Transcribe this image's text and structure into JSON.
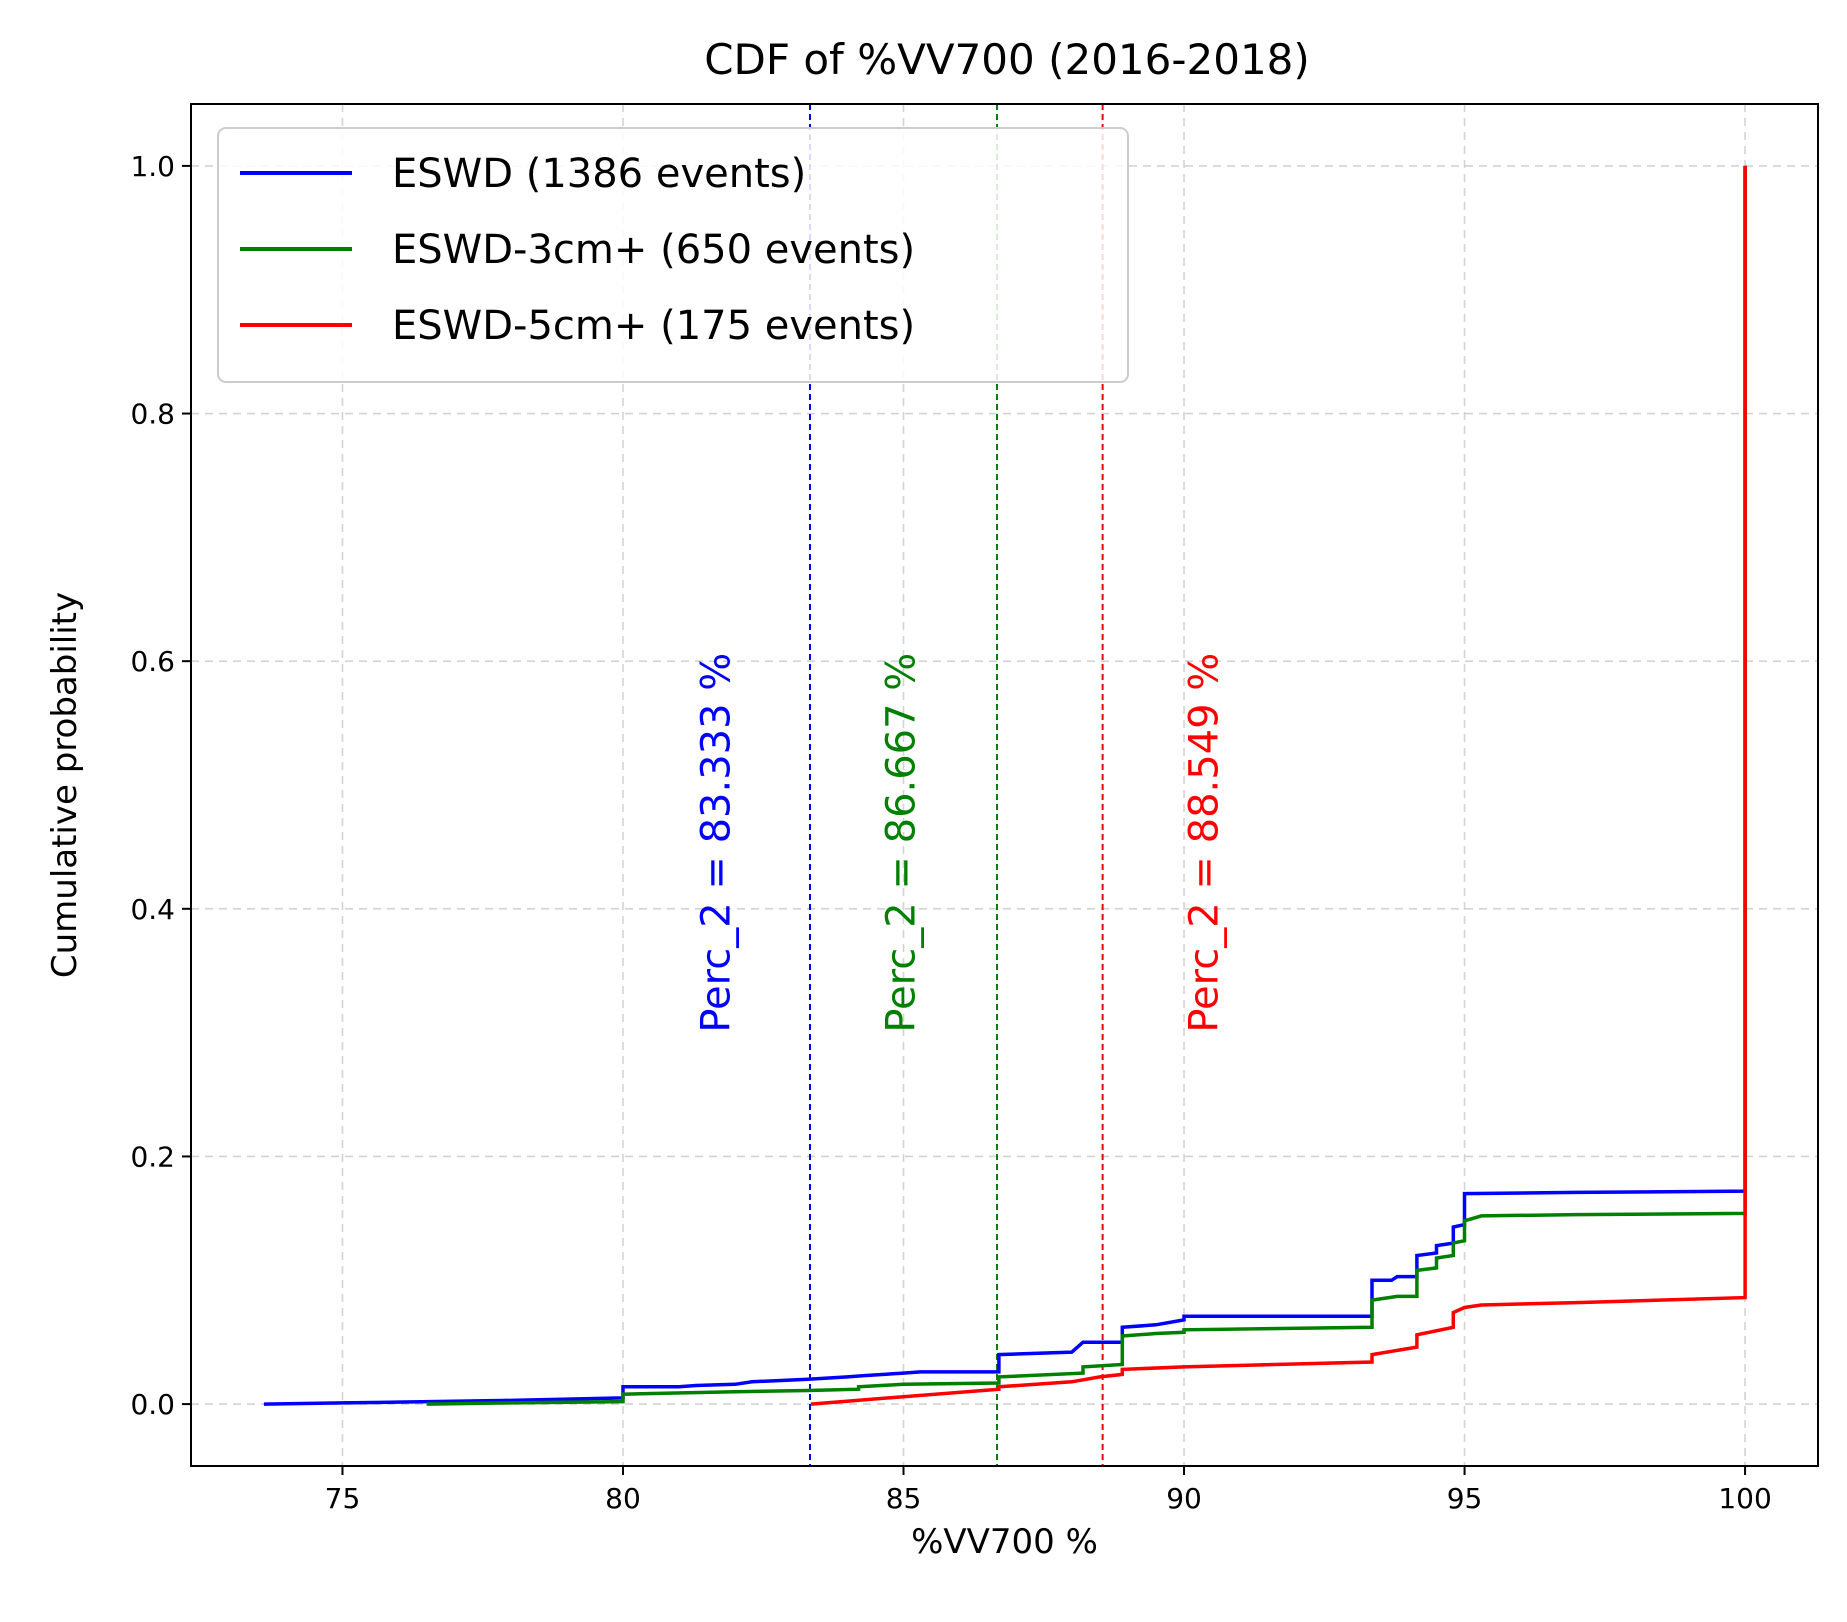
{
  "chart_data": {
    "type": "line",
    "title": "CDF of %VV700 (2016-2018)",
    "xlabel": "%VV700 %",
    "ylabel": "Cumulative probability",
    "xlim": [
      72.3,
      101.3
    ],
    "ylim": [
      -0.05,
      1.05
    ],
    "xticks": [
      75,
      80,
      85,
      90,
      95,
      100
    ],
    "yticks": [
      0.0,
      0.2,
      0.4,
      0.6,
      0.8,
      1.0
    ],
    "xtick_labels": [
      "75",
      "80",
      "85",
      "90",
      "95",
      "100"
    ],
    "ytick_labels": [
      "0.0",
      "0.2",
      "0.4",
      "0.6",
      "0.8",
      "1.0"
    ],
    "grid": true,
    "legend_position": "top-left",
    "series": [
      {
        "name": "ESWD (1386 events)",
        "color": "#0000ff",
        "points": [
          [
            73.6,
            0.0
          ],
          [
            75.0,
            0.001
          ],
          [
            78.0,
            0.003
          ],
          [
            80.0,
            0.005
          ],
          [
            80.0,
            0.014
          ],
          [
            81.0,
            0.014
          ],
          [
            81.3,
            0.015
          ],
          [
            82.0,
            0.016
          ],
          [
            82.3,
            0.018
          ],
          [
            83.3,
            0.02
          ],
          [
            84.0,
            0.022
          ],
          [
            84.3,
            0.023
          ],
          [
            85.0,
            0.025
          ],
          [
            85.3,
            0.026
          ],
          [
            86.7,
            0.026
          ],
          [
            86.7,
            0.04
          ],
          [
            88.0,
            0.042
          ],
          [
            88.2,
            0.05
          ],
          [
            88.9,
            0.05
          ],
          [
            88.9,
            0.062
          ],
          [
            89.5,
            0.064
          ],
          [
            90.0,
            0.068
          ],
          [
            90.0,
            0.071
          ],
          [
            92.0,
            0.071
          ],
          [
            93.35,
            0.071
          ],
          [
            93.35,
            0.1
          ],
          [
            93.7,
            0.1
          ],
          [
            93.8,
            0.103
          ],
          [
            94.15,
            0.103
          ],
          [
            94.15,
            0.12
          ],
          [
            94.5,
            0.122
          ],
          [
            94.5,
            0.128
          ],
          [
            94.8,
            0.13
          ],
          [
            94.8,
            0.143
          ],
          [
            95.0,
            0.145
          ],
          [
            95.0,
            0.17
          ],
          [
            97.0,
            0.171
          ],
          [
            100.0,
            0.172
          ],
          [
            100.0,
            1.0
          ]
        ]
      },
      {
        "name": "ESWD-3cm+ (650 events)",
        "color": "#008000",
        "points": [
          [
            76.5,
            0.0
          ],
          [
            78.0,
            0.001
          ],
          [
            80.0,
            0.002
          ],
          [
            80.0,
            0.008
          ],
          [
            82.0,
            0.01
          ],
          [
            83.3,
            0.011
          ],
          [
            84.2,
            0.012
          ],
          [
            84.2,
            0.014
          ],
          [
            85.0,
            0.016
          ],
          [
            86.7,
            0.017
          ],
          [
            86.7,
            0.022
          ],
          [
            88.2,
            0.025
          ],
          [
            88.2,
            0.03
          ],
          [
            88.9,
            0.032
          ],
          [
            88.9,
            0.055
          ],
          [
            89.5,
            0.057
          ],
          [
            90.0,
            0.058
          ],
          [
            90.0,
            0.06
          ],
          [
            93.35,
            0.062
          ],
          [
            93.35,
            0.084
          ],
          [
            93.8,
            0.087
          ],
          [
            94.15,
            0.087
          ],
          [
            94.15,
            0.108
          ],
          [
            94.5,
            0.11
          ],
          [
            94.5,
            0.118
          ],
          [
            94.8,
            0.12
          ],
          [
            94.8,
            0.13
          ],
          [
            95.0,
            0.132
          ],
          [
            95.0,
            0.148
          ],
          [
            95.3,
            0.152
          ],
          [
            97.0,
            0.153
          ],
          [
            100.0,
            0.154
          ],
          [
            100.0,
            1.0
          ]
        ]
      },
      {
        "name": "ESWD-5cm+ (175 events)",
        "color": "#ff0000",
        "points": [
          [
            83.35,
            0.0
          ],
          [
            85.0,
            0.006
          ],
          [
            86.7,
            0.012
          ],
          [
            86.7,
            0.014
          ],
          [
            88.0,
            0.018
          ],
          [
            88.5,
            0.022
          ],
          [
            88.9,
            0.024
          ],
          [
            88.9,
            0.028
          ],
          [
            90.0,
            0.03
          ],
          [
            93.35,
            0.034
          ],
          [
            93.35,
            0.04
          ],
          [
            94.15,
            0.046
          ],
          [
            94.15,
            0.056
          ],
          [
            94.8,
            0.062
          ],
          [
            94.8,
            0.074
          ],
          [
            95.0,
            0.078
          ],
          [
            95.3,
            0.08
          ],
          [
            97.0,
            0.082
          ],
          [
            100.0,
            0.086
          ],
          [
            100.0,
            1.0
          ]
        ]
      }
    ],
    "reference_lines": [
      {
        "x": 83.333,
        "color": "#0000ff",
        "label": "Perc_2 = 83.333 %",
        "label_x": 81.9,
        "label_y": 0.3
      },
      {
        "x": 86.667,
        "color": "#008000",
        "label": "Perc_2 = 86.667 %",
        "label_x": 85.2,
        "label_y": 0.3
      },
      {
        "x": 88.549,
        "color": "#ff0000",
        "label": "Perc_2 = 88.549 %",
        "label_x": 90.6,
        "label_y": 0.3
      }
    ]
  }
}
